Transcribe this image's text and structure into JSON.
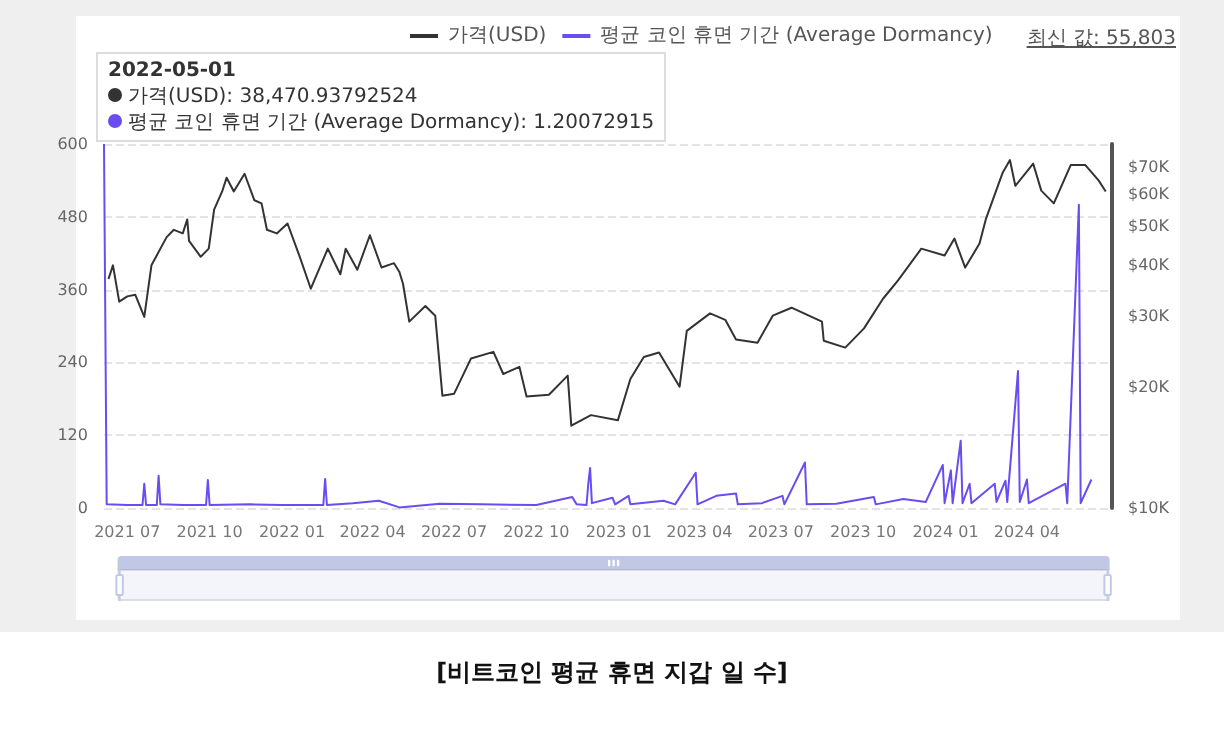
{
  "chart_data": {
    "type": "line",
    "annotations": [
      "2022-05-01",
      "가격(USD): 38,470.93792524",
      "평균 코인 휴면 기간 (Average Dormancy): 1.20072915",
      "최신 값: 55,803",
      "[비트코인 평균 휴면 지갑 일 수]"
    ],
    "series": [
      {
        "name": "가격(USD)",
        "color": "#333333",
        "axis": "y2",
        "x": [
          "2021-06-10",
          "2021-06-15",
          "2021-06-22",
          "2021-07-01",
          "2021-07-10",
          "2021-07-20",
          "2021-07-28",
          "2021-08-07",
          "2021-08-14",
          "2021-08-22",
          "2021-09-01",
          "2021-09-06",
          "2021-09-08",
          "2021-09-21",
          "2021-09-30",
          "2021-10-06",
          "2021-10-15",
          "2021-10-20",
          "2021-10-28",
          "2021-11-09",
          "2021-11-20",
          "2021-11-28",
          "2021-12-04",
          "2021-12-15",
          "2021-12-27",
          "2022-01-10",
          "2022-01-22",
          "2022-02-10",
          "2022-02-24",
          "2022-03-02",
          "2022-03-15",
          "2022-03-29",
          "2022-04-11",
          "2022-04-25",
          "2022-05-01",
          "2022-05-05",
          "2022-05-12",
          "2022-05-30",
          "2022-06-10",
          "2022-06-18",
          "2022-07-01",
          "2022-07-20",
          "2022-08-14",
          "2022-08-25",
          "2022-09-12",
          "2022-09-20",
          "2022-10-15",
          "2022-11-05",
          "2022-11-09",
          "2022-12-01",
          "2022-12-31",
          "2023-01-14",
          "2023-01-29",
          "2023-02-15",
          "2023-03-10",
          "2023-03-18",
          "2023-04-13",
          "2023-04-30",
          "2023-05-12",
          "2023-06-05",
          "2023-06-22",
          "2023-07-13",
          "2023-08-16",
          "2023-08-18",
          "2023-09-11",
          "2023-10-02",
          "2023-10-23",
          "2023-11-09",
          "2023-12-05",
          "2023-12-31",
          "2024-01-11",
          "2024-01-23",
          "2024-02-08",
          "2024-02-15",
          "2024-02-28",
          "2024-03-05",
          "2024-03-13",
          "2024-03-19",
          "2024-04-08",
          "2024-04-17",
          "2024-05-01",
          "2024-05-20",
          "2024-06-05",
          "2024-06-20",
          "2024-06-28"
        ],
        "values": [
          37000,
          40000,
          32500,
          33500,
          33800,
          29800,
          40000,
          44000,
          47000,
          49000,
          48000,
          52000,
          46000,
          42000,
          44000,
          55000,
          61000,
          66000,
          61000,
          67500,
          58000,
          57000,
          49000,
          48000,
          50800,
          41800,
          35000,
          44000,
          38000,
          44000,
          39000,
          47500,
          39500,
          40500,
          38500,
          36000,
          29000,
          31700,
          30000,
          19000,
          19200,
          23500,
          24400,
          21500,
          22400,
          18900,
          19100,
          21300,
          16000,
          17000,
          16500,
          20900,
          23700,
          24300,
          20000,
          27500,
          30400,
          29300,
          26200,
          25700,
          30000,
          31400,
          29000,
          26000,
          25000,
          27900,
          33000,
          36700,
          44000,
          42300,
          46600,
          39500,
          45300,
          52000,
          62500,
          68000,
          73000,
          63000,
          71500,
          61300,
          57000,
          71000,
          71000,
          65000,
          61000
        ]
      },
      {
        "name": "평균 코인 휴면 기간 (Average Dormancy)",
        "color": "#6a4cf0",
        "x": [
          "2021-06-05",
          "2021-06-08",
          "2021-07-01",
          "2021-07-18",
          "2021-07-20",
          "2021-07-22",
          "2021-08-03",
          "2021-08-05",
          "2021-08-07",
          "2021-09-01",
          "2021-09-27",
          "2021-09-29",
          "2021-10-01",
          "2021-11-15",
          "2021-12-20",
          "2022-02-05",
          "2022-02-07",
          "2022-02-09",
          "2022-03-10",
          "2022-04-08",
          "2022-05-01",
          "2022-06-15",
          "2022-08-01",
          "2022-10-01",
          "2022-11-10",
          "2022-11-15",
          "2022-11-26",
          "2022-11-28",
          "2022-11-30",
          "2022-12-02",
          "2022-12-25",
          "2022-12-28",
          "2023-01-12",
          "2023-01-14",
          "2023-02-20",
          "2023-03-05",
          "2023-03-28",
          "2023-03-30",
          "2023-04-20",
          "2023-05-12",
          "2023-05-14",
          "2023-06-10",
          "2023-07-03",
          "2023-07-05",
          "2023-07-28",
          "2023-07-30",
          "2023-09-01",
          "2023-10-13",
          "2023-10-15",
          "2023-11-15",
          "2023-12-10",
          "2023-12-29",
          "2023-12-31",
          "2024-01-07",
          "2024-01-09",
          "2024-01-18",
          "2024-01-20",
          "2024-01-28",
          "2024-01-30",
          "2024-02-25",
          "2024-02-27",
          "2024-03-08",
          "2024-03-10",
          "2024-03-22",
          "2024-03-24",
          "2024-04-01",
          "2024-04-03",
          "2024-05-14",
          "2024-05-16",
          "2024-05-29",
          "2024-05-31",
          "2024-06-12"
        ],
        "values": [
          600,
          6,
          5,
          5,
          40,
          5,
          5,
          53,
          6,
          5,
          5,
          46,
          5,
          6,
          5,
          5,
          48,
          5,
          8,
          12,
          1,
          7,
          6,
          5,
          18,
          6,
          5,
          40,
          66,
          8,
          17,
          6,
          20,
          6,
          12,
          6,
          58,
          6,
          20,
          24,
          6,
          8,
          20,
          6,
          75,
          6,
          7,
          18,
          6,
          15,
          10,
          71,
          8,
          62,
          8,
          111,
          8,
          40,
          8,
          40,
          10,
          45,
          10,
          226,
          10,
          47,
          8,
          40,
          8,
          500,
          8,
          47
        ]
      }
    ],
    "xlim": [
      "2021-06-05",
      "2024-07-05"
    ],
    "xticks": [
      {
        "value": "2021-07",
        "label": "2021 07"
      },
      {
        "value": "2021-10",
        "label": "2021 10"
      },
      {
        "value": "2022-01",
        "label": "2022 01"
      },
      {
        "value": "2022-04",
        "label": "2022 04"
      },
      {
        "value": "2022-07",
        "label": "2022 07"
      },
      {
        "value": "2022-10",
        "label": "2022 10"
      },
      {
        "value": "2023-01",
        "label": "2023 01"
      },
      {
        "value": "2023-04",
        "label": "2023 04"
      },
      {
        "value": "2023-07",
        "label": "2023 07"
      },
      {
        "value": "2023-10",
        "label": "2023 10"
      },
      {
        "value": "2024-01",
        "label": "2024 01"
      },
      {
        "value": "2024-04",
        "label": "2024 04"
      }
    ],
    "ylim": [
      0,
      600
    ],
    "yticks": [
      0,
      120,
      240,
      360,
      480,
      600
    ],
    "y2lim": [
      10000,
      80000
    ],
    "y2ticks": [
      {
        "value": 10000,
        "label": "$10K"
      },
      {
        "value": 20000,
        "label": "$20K"
      },
      {
        "value": 30000,
        "label": "$30K"
      },
      {
        "value": 40000,
        "label": "$40K"
      },
      {
        "value": 50000,
        "label": "$50K"
      },
      {
        "value": 60000,
        "label": "$60K"
      },
      {
        "value": 70000,
        "label": "$70K"
      }
    ],
    "log": "y2",
    "grid": "y",
    "legend": "top",
    "marker": "none",
    "line_style": "solid"
  }
}
